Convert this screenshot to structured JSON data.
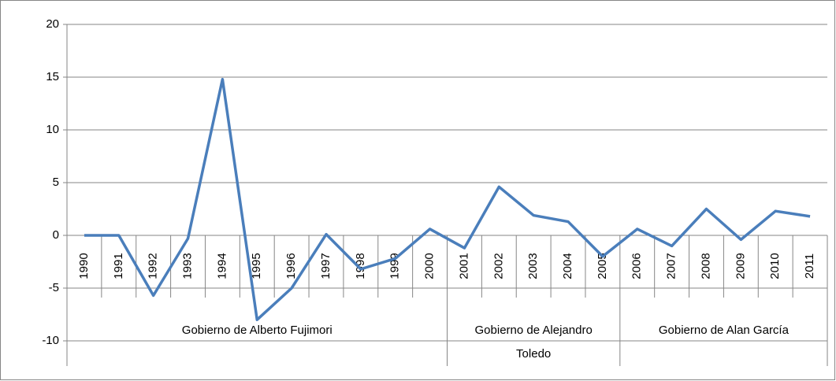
{
  "chart_data": {
    "type": "line",
    "groups": [
      {
        "label": "Gobierno de Alberto Fujimori",
        "categories": [
          "1990",
          "1991",
          "1992",
          "1993",
          "1994",
          "1995",
          "1996",
          "1997",
          "1998",
          "1999",
          "2000"
        ]
      },
      {
        "label": "Gobierno de Alejandro Toledo",
        "categories": [
          "2001",
          "2002",
          "2003",
          "2004",
          "2005"
        ]
      },
      {
        "label": "Gobierno de Alan García",
        "categories": [
          "2006",
          "2007",
          "2008",
          "2009",
          "2010",
          "2011"
        ]
      }
    ],
    "series": [
      {
        "color": "#4a7ebb",
        "values": [
          0,
          0,
          -5.7,
          -0.3,
          14.8,
          -8,
          -5,
          0.1,
          -3.2,
          -2.2,
          0.6,
          -1.2,
          4.6,
          1.9,
          1.3,
          -2.0,
          0.6,
          -1.0,
          2.5,
          -0.4,
          2.3,
          1.8
        ]
      }
    ],
    "ylim": [
      -10,
      20
    ],
    "yticks": [
      -10,
      -5,
      0,
      5,
      10,
      15,
      20
    ],
    "grid": true
  }
}
